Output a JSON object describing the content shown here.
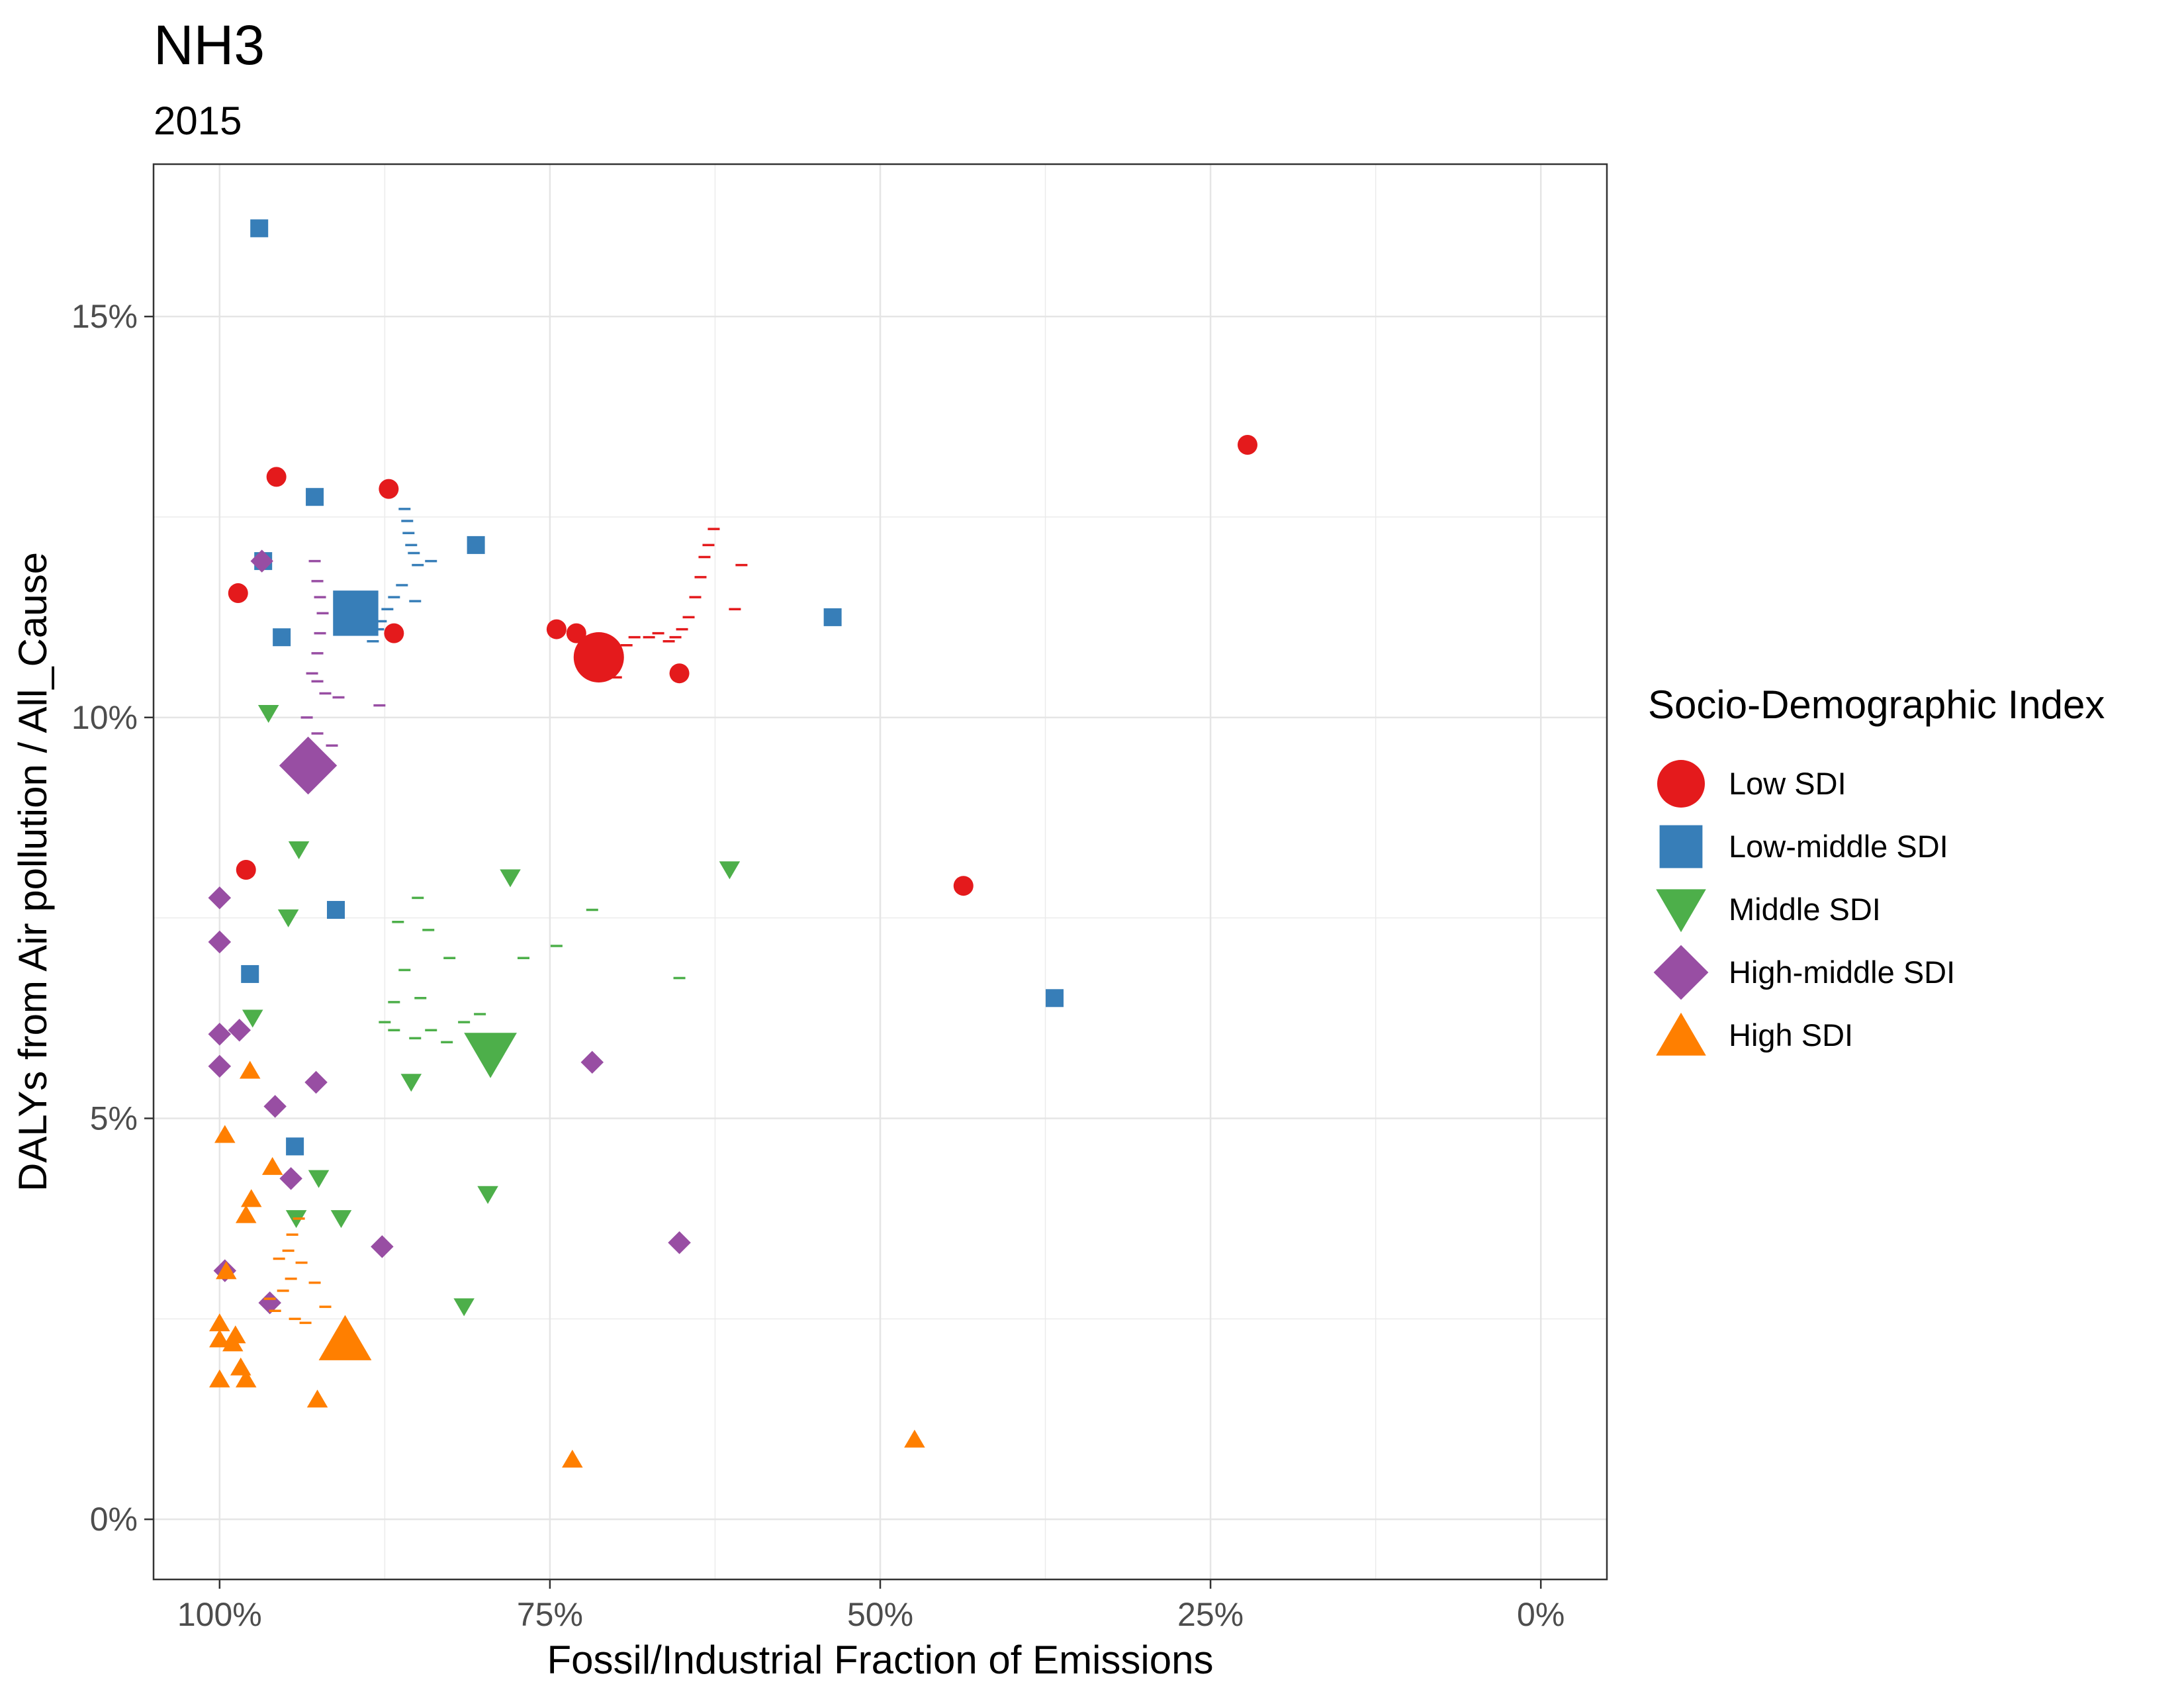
{
  "chart_data": {
    "type": "scatter",
    "title": "NH3",
    "subtitle": "2015",
    "xlabel": "Fossil/Industrial Fraction of Emissions",
    "ylabel": "DALYs from Air pollution / All_Cause",
    "x_reversed": true,
    "xlim": [
      1.05,
      -0.05
    ],
    "ylim": [
      -0.75,
      16.9
    ],
    "x_ticks": [
      1.0,
      0.75,
      0.5,
      0.25,
      0.0
    ],
    "x_tick_labels": [
      "100%",
      "75%",
      "50%",
      "25%",
      "0%"
    ],
    "y_ticks": [
      0,
      5,
      10,
      15
    ],
    "y_tick_labels": [
      "0%",
      "5%",
      "10%",
      "15%"
    ],
    "grid": true,
    "legend": {
      "title": "Socio-Demographic Index",
      "position": "right"
    },
    "series": [
      {
        "name": "Low SDI",
        "color": "#E41A1C",
        "shape": "circle",
        "points": [
          [
            0.957,
            13.0
          ],
          [
            0.872,
            12.85
          ],
          [
            0.986,
            11.55
          ],
          [
            0.868,
            11.05
          ],
          [
            0.745,
            11.1
          ],
          [
            0.73,
            11.05
          ],
          [
            0.98,
            8.1
          ],
          [
            0.222,
            13.4
          ],
          [
            0.652,
            10.55
          ],
          [
            0.437,
            7.9
          ]
        ],
        "aggregate": [
          0.713,
          10.75
        ],
        "trail": [
          [
            0.7,
            10.5
          ],
          [
            0.692,
            10.9
          ],
          [
            0.686,
            11.0
          ],
          [
            0.675,
            11.0
          ],
          [
            0.668,
            11.05
          ],
          [
            0.66,
            10.95
          ],
          [
            0.655,
            11.0
          ],
          [
            0.65,
            11.1
          ],
          [
            0.645,
            11.25
          ],
          [
            0.64,
            11.5
          ],
          [
            0.636,
            11.75
          ],
          [
            0.633,
            12.0
          ],
          [
            0.63,
            12.15
          ],
          [
            0.626,
            12.35
          ],
          [
            0.61,
            11.35
          ],
          [
            0.605,
            11.9
          ]
        ]
      },
      {
        "name": "Low-middle SDI",
        "color": "#377EB8",
        "shape": "square",
        "points": [
          [
            0.97,
            16.1
          ],
          [
            0.928,
            12.75
          ],
          [
            0.806,
            12.15
          ],
          [
            0.967,
            11.95
          ],
          [
            0.953,
            11.0
          ],
          [
            0.536,
            11.25
          ],
          [
            0.912,
            7.6
          ],
          [
            0.977,
            6.8
          ],
          [
            0.943,
            4.65
          ],
          [
            0.368,
            6.5
          ]
        ],
        "aggregate": [
          0.897,
          11.3
        ],
        "trail": [
          [
            0.86,
            12.6
          ],
          [
            0.858,
            12.45
          ],
          [
            0.857,
            12.3
          ],
          [
            0.855,
            12.15
          ],
          [
            0.853,
            12.05
          ],
          [
            0.85,
            11.9
          ],
          [
            0.862,
            11.65
          ],
          [
            0.868,
            11.5
          ],
          [
            0.873,
            11.35
          ],
          [
            0.878,
            11.2
          ],
          [
            0.88,
            11.1
          ],
          [
            0.884,
            10.95
          ],
          [
            0.84,
            11.95
          ],
          [
            0.852,
            11.45
          ]
        ]
      },
      {
        "name": "Middle SDI",
        "color": "#4DAF4A",
        "shape": "triangle-down",
        "points": [
          [
            0.963,
            10.05
          ],
          [
            0.94,
            8.35
          ],
          [
            0.948,
            7.5
          ],
          [
            0.78,
            8.0
          ],
          [
            0.614,
            8.1
          ],
          [
            0.975,
            6.25
          ],
          [
            0.855,
            5.45
          ],
          [
            0.925,
            4.25
          ],
          [
            0.942,
            3.75
          ],
          [
            0.908,
            3.75
          ],
          [
            0.797,
            4.05
          ],
          [
            0.815,
            2.65
          ]
        ],
        "aggregate": [
          0.795,
          5.8
        ],
        "trail": [
          [
            0.85,
            7.75
          ],
          [
            0.865,
            7.45
          ],
          [
            0.842,
            7.35
          ],
          [
            0.826,
            7.0
          ],
          [
            0.86,
            6.85
          ],
          [
            0.848,
            6.5
          ],
          [
            0.868,
            6.45
          ],
          [
            0.875,
            6.2
          ],
          [
            0.868,
            6.1
          ],
          [
            0.852,
            6.0
          ],
          [
            0.84,
            6.1
          ],
          [
            0.828,
            5.95
          ],
          [
            0.815,
            6.2
          ],
          [
            0.803,
            6.3
          ],
          [
            0.77,
            7.0
          ],
          [
            0.745,
            7.15
          ],
          [
            0.718,
            7.6
          ],
          [
            0.652,
            6.75
          ]
        ]
      },
      {
        "name": "High-middle SDI",
        "color": "#984EA3",
        "shape": "diamond",
        "points": [
          [
            0.968,
            11.95
          ],
          [
            1.0,
            7.75
          ],
          [
            1.0,
            7.2
          ],
          [
            1.0,
            6.05
          ],
          [
            0.985,
            6.1
          ],
          [
            1.0,
            5.65
          ],
          [
            0.927,
            5.45
          ],
          [
            0.958,
            5.15
          ],
          [
            0.946,
            4.25
          ],
          [
            0.877,
            3.4
          ],
          [
            0.996,
            3.1
          ],
          [
            0.962,
            2.7
          ],
          [
            0.718,
            5.7
          ],
          [
            0.652,
            3.45
          ]
        ],
        "aggregate": [
          0.933,
          9.4
        ],
        "trail": [
          [
            0.928,
            11.95
          ],
          [
            0.926,
            11.7
          ],
          [
            0.924,
            11.5
          ],
          [
            0.922,
            11.3
          ],
          [
            0.924,
            11.05
          ],
          [
            0.926,
            10.8
          ],
          [
            0.93,
            10.55
          ],
          [
            0.926,
            10.45
          ],
          [
            0.92,
            10.3
          ],
          [
            0.91,
            10.25
          ],
          [
            0.934,
            10.0
          ],
          [
            0.926,
            9.8
          ],
          [
            0.915,
            9.65
          ],
          [
            0.938,
            9.5
          ],
          [
            0.933,
            9.3
          ],
          [
            0.879,
            10.15
          ]
        ]
      },
      {
        "name": "High SDI",
        "color": "#FF7F00",
        "shape": "triangle-up",
        "points": [
          [
            0.977,
            5.6
          ],
          [
            0.996,
            4.8
          ],
          [
            0.96,
            4.4
          ],
          [
            0.976,
            4.0
          ],
          [
            0.98,
            3.8
          ],
          [
            0.995,
            3.1
          ],
          [
            1.0,
            2.45
          ],
          [
            0.988,
            2.3
          ],
          [
            1.0,
            2.25
          ],
          [
            0.99,
            2.2
          ],
          [
            0.984,
            1.9
          ],
          [
            1.0,
            1.75
          ],
          [
            0.98,
            1.75
          ],
          [
            0.926,
            1.5
          ],
          [
            0.474,
            1.0
          ],
          [
            0.733,
            0.75
          ]
        ],
        "aggregate": [
          0.905,
          2.25
        ],
        "trail": [
          [
            0.94,
            3.75
          ],
          [
            0.945,
            3.55
          ],
          [
            0.948,
            3.35
          ],
          [
            0.955,
            3.25
          ],
          [
            0.938,
            3.2
          ],
          [
            0.946,
            3.0
          ],
          [
            0.952,
            2.85
          ],
          [
            0.962,
            2.75
          ],
          [
            0.958,
            2.6
          ],
          [
            0.943,
            2.5
          ],
          [
            0.935,
            2.45
          ],
          [
            0.928,
            2.95
          ],
          [
            0.92,
            2.65
          ]
        ]
      }
    ]
  }
}
